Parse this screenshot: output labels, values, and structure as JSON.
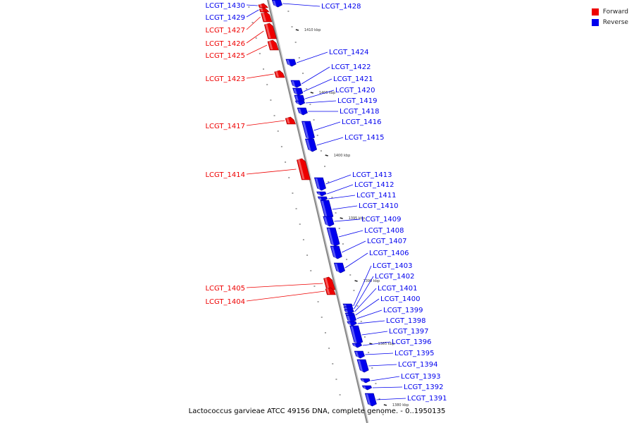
{
  "legend": [
    {
      "label": "Forward",
      "color": "#ee0000"
    },
    {
      "label": "Reverse",
      "color": "#0000ee"
    }
  ],
  "caption": "Lactococcus garvieae ATCC 49156 DNA, complete genome. - 0..1950135",
  "colors": {
    "forward": "#ee0000",
    "reverse": "#0000ee",
    "backbone": "#888888"
  },
  "scale_labels": [
    "1410 kbp",
    "1405 kbp",
    "1400 kbp",
    "1395 kbp",
    "1390 kbp",
    "1385 kbp",
    "1380 kbp"
  ],
  "genes": [
    {
      "id": "LCGT_1430",
      "strand": "forward",
      "y": 8,
      "size": 1
    },
    {
      "id": "LCGT_1429",
      "strand": "forward",
      "y": 14,
      "size": 1
    },
    {
      "id": "LCGT_1428",
      "strand": "reverse",
      "y": 5,
      "size": 2
    },
    {
      "id": "LCGT_1427",
      "strand": "forward",
      "y": 24,
      "size": 3
    },
    {
      "id": "LCGT_1426",
      "strand": "forward",
      "y": 44,
      "size": 5
    },
    {
      "id": "LCGT_1425",
      "strand": "forward",
      "y": 64,
      "size": 3
    },
    {
      "id": "LCGT_1424",
      "strand": "reverse",
      "y": 89,
      "size": 2
    },
    {
      "id": "LCGT_1423",
      "strand": "forward",
      "y": 105,
      "size": 2
    },
    {
      "id": "LCGT_1422",
      "strand": "reverse",
      "y": 119,
      "size": 2
    },
    {
      "id": "LCGT_1421",
      "strand": "reverse",
      "y": 130,
      "size": 2
    },
    {
      "id": "LCGT_1420",
      "strand": "reverse",
      "y": 140,
      "size": 2
    },
    {
      "id": "LCGT_1419",
      "strand": "reverse",
      "y": 146,
      "size": 1
    },
    {
      "id": "LCGT_1418",
      "strand": "reverse",
      "y": 158,
      "size": 2
    },
    {
      "id": "LCGT_1417",
      "strand": "forward",
      "y": 171,
      "size": 2
    },
    {
      "id": "LCGT_1416",
      "strand": "reverse",
      "y": 185,
      "size": 6
    },
    {
      "id": "LCGT_1415",
      "strand": "reverse",
      "y": 206,
      "size": 4
    },
    {
      "id": "LCGT_1414",
      "strand": "forward",
      "y": 240,
      "size": 7
    },
    {
      "id": "LCGT_1413",
      "strand": "reverse",
      "y": 261,
      "size": 4
    },
    {
      "id": "LCGT_1412",
      "strand": "reverse",
      "y": 275,
      "size": 1
    },
    {
      "id": "LCGT_1411",
      "strand": "reverse",
      "y": 282,
      "size": 1
    },
    {
      "id": "LCGT_1410",
      "strand": "reverse",
      "y": 297,
      "size": 6
    },
    {
      "id": "LCGT_1409",
      "strand": "reverse",
      "y": 314,
      "size": 3
    },
    {
      "id": "LCGT_1408",
      "strand": "reverse",
      "y": 336,
      "size": 6
    },
    {
      "id": "LCGT_1407",
      "strand": "reverse",
      "y": 358,
      "size": 4
    },
    {
      "id": "LCGT_1406",
      "strand": "reverse",
      "y": 380,
      "size": 3
    },
    {
      "id": "LCGT_1405",
      "strand": "forward",
      "y": 402,
      "size": 4
    },
    {
      "id": "LCGT_1404",
      "strand": "forward",
      "y": 413,
      "size": 2
    },
    {
      "id": "LCGT_1403",
      "strand": "reverse",
      "y": 434,
      "size": 1
    },
    {
      "id": "LCGT_1402",
      "strand": "reverse",
      "y": 438,
      "size": 1
    },
    {
      "id": "LCGT_1401",
      "strand": "reverse",
      "y": 442,
      "size": 1
    },
    {
      "id": "LCGT_1400",
      "strand": "reverse",
      "y": 447,
      "size": 1
    },
    {
      "id": "LCGT_1399",
      "strand": "reverse",
      "y": 452,
      "size": 2
    },
    {
      "id": "LCGT_1398",
      "strand": "reverse",
      "y": 459,
      "size": 1
    },
    {
      "id": "LCGT_1397",
      "strand": "reverse",
      "y": 475,
      "size": 6
    },
    {
      "id": "LCGT_1396",
      "strand": "reverse",
      "y": 490,
      "size": 1
    },
    {
      "id": "LCGT_1395",
      "strand": "reverse",
      "y": 503,
      "size": 2
    },
    {
      "id": "LCGT_1394",
      "strand": "reverse",
      "y": 519,
      "size": 4
    },
    {
      "id": "LCGT_1393",
      "strand": "reverse",
      "y": 540,
      "size": 1
    },
    {
      "id": "LCGT_1392",
      "strand": "reverse",
      "y": 550,
      "size": 1
    },
    {
      "id": "LCGT_1391",
      "strand": "reverse",
      "y": 567,
      "size": 4
    }
  ]
}
